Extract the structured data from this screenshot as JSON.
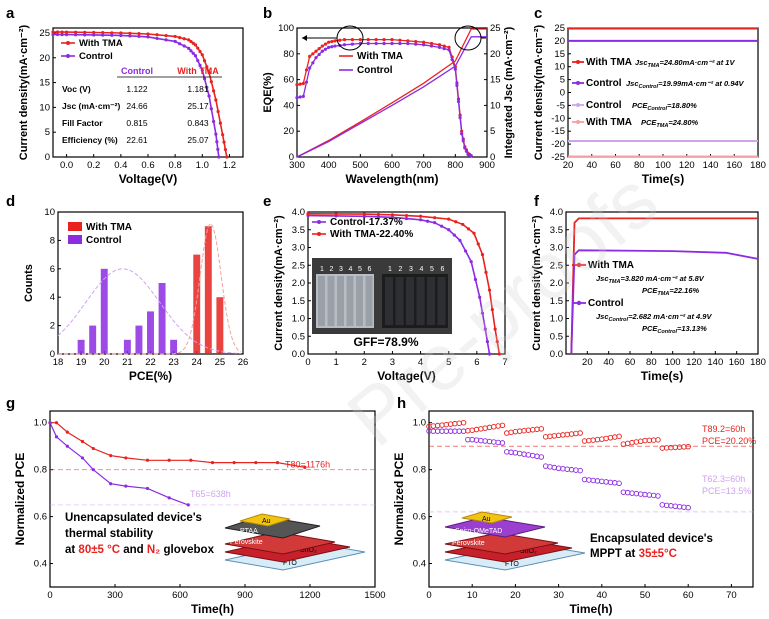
{
  "watermark": "Pre-proofs",
  "colors": {
    "tma": "#e8231f",
    "control": "#8b2be2",
    "tmaLight": "#f4a0a0",
    "controlLight": "#cfa3ef",
    "ref": "#f3b0b0",
    "refControl": "#d9b6f2"
  },
  "chart_data": [
    {
      "panel": "a",
      "type": "line",
      "xlabel": "Voltage(V)",
      "ylabel": "Current density(mA·cm⁻²)",
      "xlim": [
        -0.1,
        1.3
      ],
      "ylim": [
        0,
        26
      ],
      "xticks": [
        "0.0",
        "0.2",
        "0.4",
        "0.6",
        "0.8",
        "1.0",
        "1.2"
      ],
      "yticks": [
        "0",
        "5",
        "10",
        "15",
        "20",
        "25"
      ],
      "legend": [
        "With TMA",
        "Control"
      ],
      "series": [
        {
          "name": "With TMA",
          "color": "#e8231f",
          "jsc": 25.17,
          "voc": 1.181,
          "x": [
            -0.1,
            0.0,
            0.2,
            0.4,
            0.6,
            0.8,
            0.9,
            0.95,
            1.0,
            1.05,
            1.1,
            1.15,
            1.181
          ],
          "y": [
            25.2,
            25.17,
            25.1,
            25.0,
            24.8,
            24.3,
            23.6,
            22.6,
            20.6,
            17.0,
            11.5,
            4.5,
            0
          ]
        },
        {
          "name": "Control",
          "color": "#8b2be2",
          "jsc": 24.66,
          "voc": 1.122,
          "x": [
            -0.1,
            0.0,
            0.2,
            0.4,
            0.6,
            0.8,
            0.9,
            0.95,
            1.0,
            1.05,
            1.1,
            1.122
          ],
          "y": [
            24.7,
            24.66,
            24.6,
            24.5,
            24.2,
            23.3,
            21.9,
            20.4,
            17.5,
            12.3,
            4.6,
            0
          ]
        }
      ],
      "table": {
        "headers": [
          "",
          "Control",
          "With TMA"
        ],
        "rows": [
          [
            "Voc (V)",
            "1.122",
            "1.181"
          ],
          [
            "Jsc (mA·cm⁻²)",
            "24.66",
            "25.17"
          ],
          [
            "Fill Factor",
            "0.815",
            "0.843"
          ],
          [
            "Efficiency (%)",
            "22.61",
            "25.07"
          ]
        ]
      }
    },
    {
      "panel": "b",
      "type": "line",
      "xlabel": "Wavelength(nm)",
      "ylabel": "EQE(%)",
      "y2label": "Integrated Jsc (mA·cm⁻²)",
      "xlim": [
        300,
        900
      ],
      "ylim": [
        0,
        100
      ],
      "y2lim": [
        0,
        25
      ],
      "xticks": [
        "300",
        "400",
        "500",
        "600",
        "700",
        "800",
        "900"
      ],
      "yticks": [
        "0",
        "20",
        "40",
        "60",
        "80",
        "100"
      ],
      "y2ticks": [
        "0",
        "5",
        "10",
        "15",
        "20",
        "25"
      ],
      "legend": [
        "With TMA",
        "Control"
      ],
      "series": [
        {
          "name": "With TMA",
          "color": "#e8231f",
          "x": [
            300,
            320,
            340,
            360,
            380,
            400,
            420,
            450,
            500,
            550,
            600,
            650,
            700,
            750,
            780,
            800,
            810,
            820,
            830,
            840,
            850
          ],
          "y": [
            56,
            57,
            78,
            82,
            86,
            89,
            90,
            91,
            91,
            91,
            91,
            90,
            89,
            87,
            85,
            70,
            45,
            20,
            8,
            3,
            1
          ]
        },
        {
          "name": "Control",
          "color": "#8b2be2",
          "x": [
            300,
            320,
            340,
            360,
            380,
            400,
            420,
            450,
            500,
            550,
            600,
            650,
            700,
            750,
            780,
            800,
            810,
            820,
            830,
            840,
            850
          ],
          "y": [
            46,
            47,
            69,
            77,
            82,
            85,
            86,
            87,
            88,
            88,
            88,
            88,
            87,
            85,
            83,
            68,
            43,
            18,
            7,
            2,
            1
          ]
        },
        {
          "name": "With TMA Jsc",
          "color": "#e8231f",
          "axis": "y2",
          "x": [
            300,
            400,
            500,
            600,
            700,
            800,
            850,
            900
          ],
          "y": [
            0,
            3.2,
            6.8,
            10.5,
            14.3,
            18.6,
            24.8,
            24.8
          ]
        },
        {
          "name": "Control Jsc",
          "color": "#8b2be2",
          "axis": "y2",
          "x": [
            300,
            400,
            500,
            600,
            700,
            800,
            850,
            900
          ],
          "y": [
            0,
            3.0,
            6.5,
            10.0,
            13.6,
            17.6,
            23.3,
            23.3
          ]
        }
      ]
    },
    {
      "panel": "c",
      "type": "line",
      "xlabel": "Time(s)",
      "ylabel": "Current density(mA·cm⁻²)",
      "xlim": [
        20,
        180
      ],
      "ylim": [
        -25,
        25
      ],
      "xticks": [
        "20",
        "40",
        "60",
        "80",
        "100",
        "120",
        "140",
        "160",
        "180"
      ],
      "yticks": [
        "-25",
        "-20",
        "-15",
        "-10",
        "-5",
        "0",
        "5",
        "10",
        "15",
        "20",
        "25"
      ],
      "series": [
        {
          "name": "With TMA",
          "color": "#e8231f",
          "x": [
            20,
            180
          ],
          "y": [
            24.8,
            24.8
          ]
        },
        {
          "name": "Control",
          "color": "#8b2be2",
          "x": [
            20,
            180
          ],
          "y": [
            19.99,
            19.99
          ]
        },
        {
          "name": "Control",
          "color": "#cfa3ef",
          "x": [
            20,
            180
          ],
          "y": [
            -18.8,
            -18.8
          ]
        },
        {
          "name": "With TMA",
          "color": "#f4a0a0",
          "x": [
            20,
            180
          ],
          "y": [
            -24.8,
            -24.8
          ]
        }
      ],
      "legend": [
        {
          "name": "With TMA",
          "note": "Jsc",
          "sub": "TMA",
          "rest": "=24.80mA·cm⁻² at 1V"
        },
        {
          "name": "Control",
          "note": "Jsc",
          "sub": "Control",
          "rest": "=19.99mA·cm⁻² at 0.94V"
        },
        {
          "name": "Control",
          "note": "PCE",
          "sub": "Control",
          "rest": "=18.80%"
        },
        {
          "name": "With TMA",
          "note": "PCE",
          "sub": "TMA",
          "rest": "=24.80%"
        }
      ]
    },
    {
      "panel": "d",
      "type": "bar",
      "xlabel": "PCE(%)",
      "ylabel": "Counts",
      "xlim": [
        18,
        26
      ],
      "ylim": [
        0,
        10
      ],
      "xticks": [
        "18",
        "19",
        "20",
        "21",
        "22",
        "23",
        "24",
        "25",
        "26"
      ],
      "yticks": [
        "0",
        "2",
        "4",
        "6",
        "8",
        "10"
      ],
      "legend": [
        "With TMA",
        "Control"
      ],
      "series": [
        {
          "name": "Control",
          "color": "#8b2be2",
          "x": [
            19,
            19.5,
            20,
            21,
            21.5,
            22,
            22.5,
            23
          ],
          "y": [
            1,
            2,
            6,
            1,
            2,
            3,
            5,
            1
          ]
        },
        {
          "name": "With TMA",
          "color": "#e8231f",
          "x": [
            24,
            24.5,
            25
          ],
          "y": [
            7,
            9,
            4
          ]
        }
      ]
    },
    {
      "panel": "e",
      "type": "line",
      "xlabel": "Voltage(V)",
      "ylabel": "Current density(mA·cm⁻²)",
      "xlim": [
        0,
        7
      ],
      "ylim": [
        0,
        4.0
      ],
      "xticks": [
        "0",
        "1",
        "2",
        "3",
        "4",
        "5",
        "6",
        "7"
      ],
      "yticks": [
        "0.0",
        "0.5",
        "1.0",
        "1.5",
        "2.0",
        "2.5",
        "3.0",
        "3.5",
        "4.0"
      ],
      "legend": [
        "Control-17.37%",
        "With TMA-22.40%"
      ],
      "annotation": "GFF=78.9%",
      "module_labels": [
        "1",
        "2",
        "3",
        "4",
        "5",
        "6"
      ],
      "series": [
        {
          "name": "Control-17.37%",
          "color": "#8b2be2",
          "x": [
            0,
            2,
            3,
            4,
            4.5,
            5,
            5.4,
            5.8,
            6.1,
            6.3,
            6.45
          ],
          "y": [
            3.9,
            3.88,
            3.85,
            3.78,
            3.7,
            3.5,
            3.2,
            2.6,
            1.6,
            0.7,
            0
          ]
        },
        {
          "name": "With TMA-22.40%",
          "color": "#e8231f",
          "x": [
            0,
            2,
            3,
            4,
            5,
            5.5,
            5.9,
            6.2,
            6.45,
            6.65,
            6.8
          ],
          "y": [
            3.95,
            3.94,
            3.92,
            3.88,
            3.8,
            3.65,
            3.4,
            2.8,
            1.8,
            0.7,
            0
          ]
        }
      ]
    },
    {
      "panel": "f",
      "type": "line",
      "xlabel": "Time(s)",
      "ylabel": "Current density(mA·cm⁻²)",
      "xlim": [
        0,
        180
      ],
      "ylim": [
        0,
        4.0
      ],
      "xticks": [
        "20",
        "40",
        "60",
        "80",
        "100",
        "120",
        "140",
        "160",
        "180"
      ],
      "yticks": [
        "0.0",
        "0.5",
        "1.0",
        "1.5",
        "2.0",
        "2.5",
        "3.0",
        "3.5",
        "4.0"
      ],
      "series": [
        {
          "name": "With TMA",
          "color": "#e8231f",
          "x": [
            5,
            8,
            12,
            180
          ],
          "y": [
            0,
            3.7,
            3.82,
            3.82
          ]
        },
        {
          "name": "Control",
          "color": "#8b2be2",
          "x": [
            5,
            8,
            12,
            100,
            150,
            180
          ],
          "y": [
            0,
            2.8,
            2.92,
            2.9,
            2.85,
            2.68
          ]
        }
      ],
      "legend": [
        {
          "name": "With TMA",
          "lines": [
            [
              "Jsc",
              "TMA",
              "=3.820 mA·cm⁻² at 5.8V"
            ],
            [
              "PCE",
              "TMA",
              "=22.16%"
            ]
          ]
        },
        {
          "name": "Control",
          "lines": [
            [
              "Jsc",
              "Control",
              "=2.682 mA·cm⁻² at 4.9V"
            ],
            [
              "PCE",
              "Control",
              "=13.13%"
            ]
          ]
        }
      ]
    },
    {
      "panel": "g",
      "type": "line",
      "xlabel": "Time(h)",
      "ylabel": "Normalized PCE",
      "xlim": [
        0,
        1500
      ],
      "ylim": [
        0.3,
        1.05
      ],
      "xticks": [
        "0",
        "300",
        "600",
        "900",
        "1200",
        "1500"
      ],
      "yticks": [
        "0.4",
        "0.6",
        "0.8",
        "1.0"
      ],
      "series": [
        {
          "name": "With TMA",
          "color": "#e8231f",
          "x": [
            0,
            30,
            80,
            150,
            200,
            280,
            350,
            450,
            550,
            650,
            750,
            850,
            950,
            1050,
            1176
          ],
          "y": [
            1.0,
            1.0,
            0.96,
            0.92,
            0.89,
            0.86,
            0.85,
            0.84,
            0.84,
            0.84,
            0.83,
            0.83,
            0.83,
            0.83,
            0.81
          ]
        },
        {
          "name": "Control",
          "color": "#8b2be2",
          "x": [
            0,
            30,
            80,
            150,
            200,
            280,
            350,
            450,
            550,
            638
          ],
          "y": [
            1.0,
            0.94,
            0.9,
            0.85,
            0.8,
            0.74,
            0.73,
            0.72,
            0.68,
            0.65
          ]
        }
      ],
      "refs": [
        {
          "y": 0.8,
          "label": "T80=1176h",
          "color": "#e8231f"
        },
        {
          "y": 0.65,
          "label": "T65=638h",
          "color": "#cfa3ef"
        }
      ],
      "caption": [
        "Unencapsulated device's",
        "thermal stability"
      ],
      "caption_parts": {
        "at": "at ",
        "temp": "80±5 °C",
        "and": " and ",
        "gas": "N₂",
        "box": " glovebox"
      },
      "layers": [
        "Au",
        "PTAA",
        "Perovskite",
        "SnO₂",
        "FTO"
      ]
    },
    {
      "panel": "h",
      "type": "scatter",
      "xlabel": "Time(h)",
      "ylabel": "Normalized PCE",
      "xlim": [
        0,
        75
      ],
      "ylim": [
        0.3,
        1.05
      ],
      "xticks": [
        "0",
        "10",
        "20",
        "30",
        "40",
        "50",
        "60",
        "70"
      ],
      "yticks": [
        "0.4",
        "0.6",
        "0.8",
        "1.0"
      ],
      "series": [
        {
          "name": "With TMA",
          "color": "#e8231f",
          "x": [
            0,
            10,
            20,
            30,
            40,
            50,
            60
          ],
          "y": [
            1.0,
            0.98,
            0.97,
            0.95,
            0.93,
            0.92,
            0.89
          ]
        },
        {
          "name": "Control",
          "color": "#8b2be2",
          "x": [
            0,
            10,
            20,
            30,
            40,
            50,
            60
          ],
          "y": [
            0.98,
            0.94,
            0.88,
            0.81,
            0.75,
            0.69,
            0.63
          ]
        }
      ],
      "refs": [
        {
          "y": 0.9,
          "label": "T89.2=60h",
          "label2": "PCE=20.20%",
          "color": "#e8231f"
        },
        {
          "y": 0.62,
          "label": "T62.3=60h",
          "label2": "PCE=13.5%",
          "color": "#cfa3ef"
        }
      ],
      "caption": [
        "Encapsulated device's"
      ],
      "caption_parts": {
        "mppt": "MPPT at ",
        "temp": "35±5°C"
      },
      "layers": [
        "Au",
        "Spiro-OMeTAD",
        "Perovskite",
        "SnO₂",
        "FTO"
      ]
    }
  ]
}
